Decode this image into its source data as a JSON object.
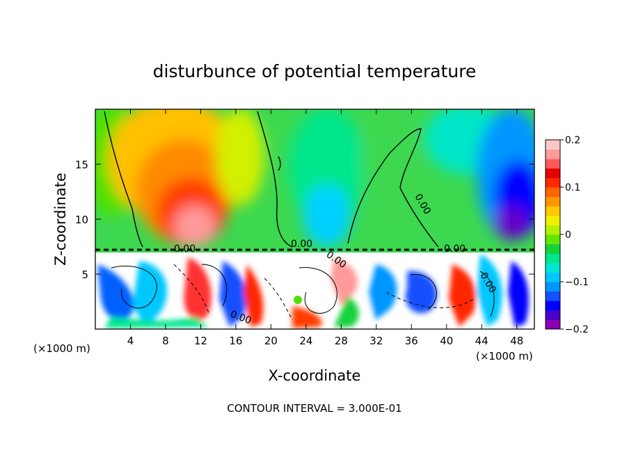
{
  "chart_data": {
    "type": "heatmap",
    "title": "disturbunce of potential temperature",
    "xlabel": "X-coordinate",
    "ylabel": "Z-coordinate",
    "x_unit_left": "(×1000 m)",
    "x_unit_right": "(×1000 m)",
    "xlim": [
      0,
      50
    ],
    "ylim": [
      0,
      20
    ],
    "x_ticks": [
      4,
      8,
      12,
      16,
      20,
      24,
      28,
      32,
      36,
      40,
      44,
      48
    ],
    "x_tick_labels": [
      "4",
      "8",
      "12",
      "16",
      "20",
      "24",
      "28",
      "32",
      "36",
      "40",
      "44",
      "48"
    ],
    "y_ticks": [
      5,
      10,
      15
    ],
    "y_tick_labels": [
      "5",
      "10",
      "15"
    ],
    "colorbar": {
      "min": -0.2,
      "max": 0.2,
      "tick_values": [
        0.2,
        0.1,
        0,
        -0.1,
        -0.2
      ],
      "tick_labels": [
        "0.2",
        "0.1",
        "0",
        "−0.1",
        "−0.2"
      ],
      "colors": [
        "#8b00b4",
        "#4a00c8",
        "#0000ff",
        "#1450ff",
        "#0096ff",
        "#00c8ff",
        "#00e6d2",
        "#00e68c",
        "#14d23c",
        "#64e600",
        "#b4f000",
        "#f0f000",
        "#ffc800",
        "#ff9600",
        "#ff6400",
        "#ff2800",
        "#e60000",
        "#ff5a5a",
        "#ff9a9a",
        "#ffc8c8"
      ]
    },
    "contour_labels": [
      "0.00",
      "0.00",
      "0.00",
      "0.00",
      "0.00",
      "0.00",
      "0.00"
    ],
    "footer": "CONTOUR INTERVAL = 3.000E-01"
  }
}
